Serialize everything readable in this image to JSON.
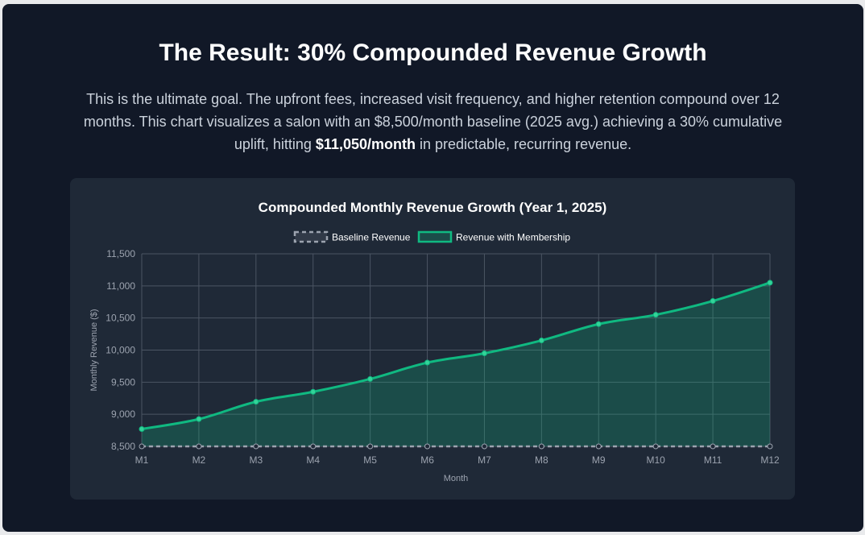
{
  "section": {
    "title": "The Result: 30% Compounded Revenue Growth",
    "intro_part1": "This is the ultimate goal. The upfront fees, increased visit frequency, and higher retention compound over 12 months. This chart visualizes a salon with an $8,500/month baseline (2025 avg.) achieving a 30% cumulative uplift, hitting ",
    "intro_bold": "$11,050/month",
    "intro_part2": " in predictable, recurring revenue."
  },
  "colors": {
    "background": "#111827",
    "panel": "#1f2937",
    "accent": "#10b981",
    "baseline": "#9ca3af"
  },
  "chart_data": {
    "type": "line",
    "title": "Compounded Monthly Revenue Growth (Year 1, 2025)",
    "xlabel": "Month",
    "ylabel": "Monthly Revenue ($)",
    "categories": [
      "M1",
      "M2",
      "M3",
      "M4",
      "M5",
      "M6",
      "M7",
      "M8",
      "M9",
      "M10",
      "M11",
      "M12"
    ],
    "ylim": [
      8500,
      11500
    ],
    "yticks": [
      "8,500",
      "9,000",
      "9,500",
      "10,000",
      "10,500",
      "11,000",
      "11,500"
    ],
    "grid": true,
    "legend_position": "top",
    "series": [
      {
        "name": "Baseline Revenue",
        "style": "dashed",
        "color": "#9ca3af",
        "values": [
          8500,
          8500,
          8500,
          8500,
          8500,
          8500,
          8500,
          8500,
          8500,
          8500,
          8500,
          8500
        ]
      },
      {
        "name": "Revenue with Membership",
        "style": "solid-filled",
        "color": "#10b981",
        "values": [
          8770,
          8925,
          9195,
          9350,
          9550,
          9805,
          9950,
          10150,
          10405,
          10550,
          10765,
          11050
        ]
      }
    ]
  }
}
